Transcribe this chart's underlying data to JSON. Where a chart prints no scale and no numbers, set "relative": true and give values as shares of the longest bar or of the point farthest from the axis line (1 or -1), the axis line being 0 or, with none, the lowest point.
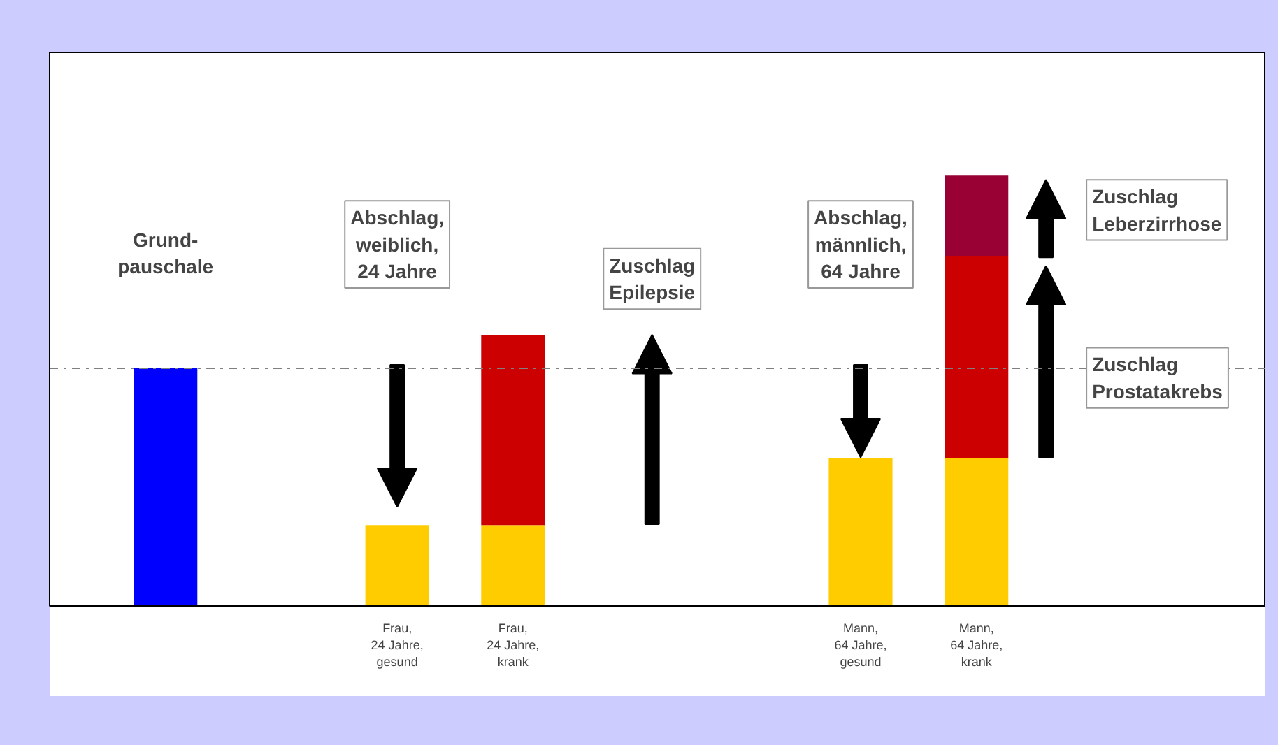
{
  "chart_data": {
    "type": "bar",
    "relative": true,
    "stacked": true,
    "categories": [
      null,
      null,
      "Frau,\n24 Jahre,\ngesund",
      "Frau,\n24 Jahre,\nkrank",
      null,
      null,
      "Mann,\n64 Jahre,\ngesund",
      "Mann,\n64 Jahre,\nkrank",
      null
    ],
    "series": [
      {
        "colors": [
          "#0000ff",
          "#ffcc00",
          "#ffcc00",
          "#ffcc00",
          "#ffcc00",
          "#ffcc00",
          "#ffcc00",
          "#ffcc00",
          "#ffcc00"
        ],
        "values": [
          0.552,
          null,
          0.188,
          0.188,
          null,
          null,
          0.344,
          0.344,
          null
        ]
      },
      {
        "color": "#cc0000",
        "values": [
          null,
          null,
          null,
          0.442,
          null,
          null,
          null,
          0.468,
          null
        ]
      },
      {
        "color": "#990033",
        "values": [
          null,
          null,
          null,
          null,
          null,
          null,
          null,
          0.188,
          null
        ]
      }
    ],
    "ref_lines": [
      {
        "axis": "y",
        "value": 0.552,
        "color": "#808080",
        "line_style": "dashdot"
      }
    ],
    "annotations": [
      "Grund-\npauschale",
      "Abschlag,\nweiblich,\n24 Jahre",
      "Zuschlag\nEpilepsie",
      "Abschlag,\nmännlich,\n64 Jahre",
      "Zuschlag\nLeberzirrhose",
      "Zuschlag\nProstatakrebs"
    ]
  }
}
